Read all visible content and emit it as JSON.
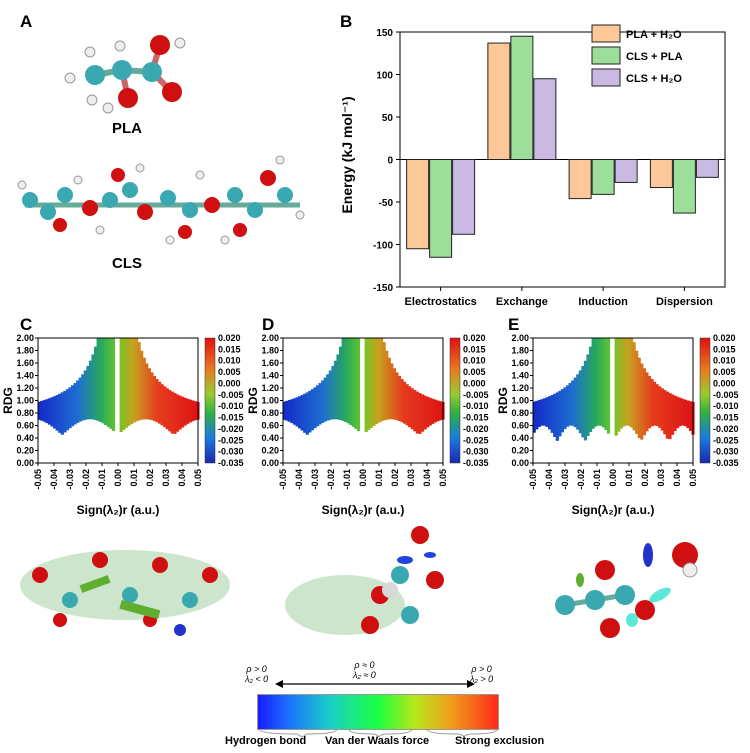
{
  "panels": {
    "a": "A",
    "b": "B",
    "c": "C",
    "d": "D",
    "e": "E"
  },
  "molecules": {
    "pla_label": "PLA",
    "cls_label": "CLS"
  },
  "chart_data": [
    {
      "type": "bar",
      "title": "",
      "ylabel": "Energy (kJ mol⁻¹)",
      "xlabel": "",
      "categories": [
        "Electrostatics",
        "Exchange",
        "Induction",
        "Dispersion"
      ],
      "series": [
        {
          "name": "PLA + H₂O",
          "color": "#fcc89a",
          "values": [
            -105,
            137,
            -46,
            -33
          ]
        },
        {
          "name": "CLS + PLA",
          "color": "#9ddf9a",
          "values": [
            -115,
            145,
            -41,
            -63
          ]
        },
        {
          "name": "CLS + H₂O",
          "color": "#c9b9e3",
          "values": [
            -88,
            95,
            -27,
            -21
          ]
        }
      ],
      "ylim": [
        -150,
        150
      ],
      "yticks": [
        150,
        100,
        50,
        0,
        -50,
        -100,
        -150
      ],
      "legend": "top-right"
    },
    {
      "type": "scatter",
      "panel": "C",
      "xlabel": "Sign(λ₂)r (a.u.)",
      "ylabel": "RDG",
      "xlim": [
        -0.05,
        0.05
      ],
      "ylim": [
        0,
        2
      ],
      "xticks": [
        "-0.05",
        "-0.04",
        "-0.03",
        "-0.02",
        "-0.01",
        "0.00",
        "0.01",
        "0.02",
        "0.03",
        "0.04",
        "0.05"
      ],
      "yticks": [
        "2.00",
        "1.80",
        "1.60",
        "1.40",
        "1.20",
        "1.00",
        "0.80",
        "0.60",
        "0.40",
        "0.20",
        "0.00"
      ],
      "colorbar_ticks": [
        "0.020",
        "0.015",
        "0.010",
        "0.005",
        "0.000",
        "-0.005",
        "-0.010",
        "-0.015",
        "-0.020",
        "-0.025",
        "-0.030",
        "-0.035"
      ]
    },
    {
      "type": "scatter",
      "panel": "D",
      "xlabel": "Sign(λ₂)r (a.u.)",
      "ylabel": "RDG",
      "xlim": [
        -0.05,
        0.05
      ],
      "ylim": [
        0,
        2
      ],
      "xticks": [
        "-0.05",
        "-0.04",
        "-0.03",
        "-0.02",
        "-0.01",
        "0.00",
        "0.01",
        "0.02",
        "0.03",
        "0.04",
        "0.05"
      ],
      "yticks": [
        "2.00",
        "1.80",
        "1.60",
        "1.40",
        "1.20",
        "1.00",
        "0.80",
        "0.60",
        "0.40",
        "0.20",
        "0.00"
      ],
      "colorbar_ticks": [
        "0.020",
        "0.015",
        "0.010",
        "0.005",
        "0.000",
        "-0.005",
        "-0.010",
        "-0.015",
        "-0.020",
        "-0.025",
        "-0.030",
        "-0.035"
      ]
    },
    {
      "type": "scatter",
      "panel": "E",
      "xlabel": "Sign(λ₂)r (a.u.)",
      "ylabel": "RDG",
      "xlim": [
        -0.05,
        0.05
      ],
      "ylim": [
        0,
        2
      ],
      "xticks": [
        "-0.05",
        "-0.04",
        "-0.03",
        "-0.02",
        "-0.01",
        "0.00",
        "0.01",
        "0.02",
        "0.03",
        "0.04",
        "0.05"
      ],
      "yticks": [
        "2.00",
        "1.80",
        "1.60",
        "1.40",
        "1.20",
        "1.00",
        "0.80",
        "0.60",
        "0.40",
        "0.20",
        "0.00"
      ],
      "colorbar_ticks": [
        "0.020",
        "0.015",
        "0.010",
        "0.005",
        "0.000",
        "-0.005",
        "-0.010",
        "-0.015",
        "-0.020",
        "-0.025",
        "-0.030",
        "-0.035"
      ]
    }
  ],
  "nci_legend": {
    "left_rho": "ρ > 0",
    "left_lambda": "λ₂ < 0",
    "mid_rho": "ρ ≈ 0",
    "mid_lambda": "λ₂ ≈ 0",
    "right_rho": "ρ > 0",
    "right_lambda": "λ₂ > 0",
    "label_left": "Hydrogen bond",
    "label_mid": "Van der Waals force",
    "label_right": "Strong exclusion"
  }
}
